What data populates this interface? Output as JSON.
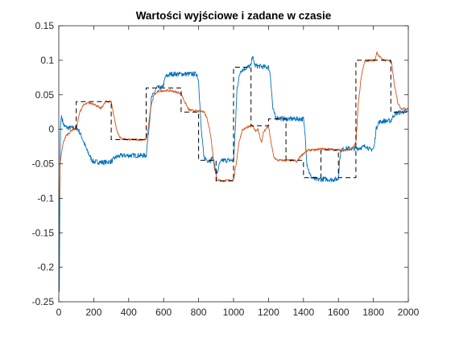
{
  "chart_data": {
    "type": "line",
    "title": "Wartości wyjściowe i zadane w czasie",
    "xlabel": "",
    "ylabel": "",
    "xlim": [
      0,
      2000
    ],
    "ylim": [
      -0.25,
      0.15
    ],
    "xticks": [
      0,
      200,
      400,
      600,
      800,
      1000,
      1200,
      1400,
      1600,
      1800,
      2000
    ],
    "yticks": [
      -0.25,
      -0.2,
      -0.15,
      -0.1,
      -0.05,
      0,
      0.05,
      0.1,
      0.15
    ],
    "xtick_labels": [
      "0",
      "200",
      "400",
      "600",
      "800",
      "1000",
      "1200",
      "1400",
      "1600",
      "1800",
      "2000"
    ],
    "ytick_labels": [
      "-0.25",
      "-0.2",
      "-0.15",
      "-0.1",
      "-0.05",
      "0",
      "0.05",
      "0.1",
      "0.15"
    ],
    "grid": false,
    "legend": "none",
    "series": [
      {
        "color": "#0072BD",
        "points": [
          [
            0,
            0
          ],
          [
            3,
            -0.235
          ],
          [
            6,
            -0.09
          ],
          [
            10,
            0.005
          ],
          [
            15,
            0.02
          ],
          [
            22,
            0.012
          ],
          [
            30,
            0.005
          ],
          [
            50,
            0.002
          ],
          [
            80,
            0.002
          ],
          [
            100,
            0.002
          ],
          [
            110,
            0.0
          ],
          [
            130,
            -0.01
          ],
          [
            160,
            -0.03
          ],
          [
            190,
            -0.045
          ],
          [
            200,
            -0.047
          ],
          [
            260,
            -0.048
          ],
          [
            290,
            -0.047
          ],
          [
            300,
            -0.047
          ],
          [
            310,
            -0.044
          ],
          [
            330,
            -0.04
          ],
          [
            360,
            -0.038
          ],
          [
            400,
            -0.038
          ],
          [
            470,
            -0.038
          ],
          [
            500,
            -0.038
          ],
          [
            515,
            0.0
          ],
          [
            530,
            0.045
          ],
          [
            560,
            0.06
          ],
          [
            590,
            0.06
          ],
          [
            600,
            0.065
          ],
          [
            610,
            0.076
          ],
          [
            640,
            0.08
          ],
          [
            700,
            0.08
          ],
          [
            790,
            0.08
          ],
          [
            800,
            0.07
          ],
          [
            815,
            0.0
          ],
          [
            830,
            -0.04
          ],
          [
            850,
            -0.045
          ],
          [
            870,
            -0.045
          ],
          [
            880,
            -0.04
          ],
          [
            895,
            -0.055
          ],
          [
            905,
            -0.065
          ],
          [
            910,
            -0.06
          ],
          [
            920,
            -0.05
          ],
          [
            935,
            -0.045
          ],
          [
            960,
            -0.045
          ],
          [
            1000,
            -0.045
          ],
          [
            1010,
            0.0
          ],
          [
            1020,
            0.06
          ],
          [
            1040,
            0.085
          ],
          [
            1080,
            0.09
          ],
          [
            1100,
            0.092
          ],
          [
            1108,
            0.108
          ],
          [
            1115,
            0.098
          ],
          [
            1125,
            0.092
          ],
          [
            1190,
            0.09
          ],
          [
            1200,
            0.09
          ],
          [
            1210,
            0.08
          ],
          [
            1225,
            0.03
          ],
          [
            1240,
            0.017
          ],
          [
            1290,
            0.015
          ],
          [
            1330,
            0.015
          ],
          [
            1400,
            0.015
          ],
          [
            1410,
            -0.01
          ],
          [
            1420,
            -0.05
          ],
          [
            1440,
            -0.068
          ],
          [
            1460,
            -0.072
          ],
          [
            1480,
            -0.073
          ],
          [
            1520,
            -0.072
          ],
          [
            1560,
            -0.073
          ],
          [
            1600,
            -0.072
          ],
          [
            1605,
            -0.05
          ],
          [
            1615,
            -0.03
          ],
          [
            1640,
            -0.028
          ],
          [
            1700,
            -0.028
          ],
          [
            1740,
            -0.026
          ],
          [
            1760,
            -0.024
          ],
          [
            1780,
            -0.03
          ],
          [
            1800,
            -0.028
          ],
          [
            1805,
            -0.025
          ],
          [
            1815,
            0.0
          ],
          [
            1830,
            0.01
          ],
          [
            1860,
            0.012
          ],
          [
            1900,
            0.012
          ],
          [
            1905,
            0.015
          ],
          [
            1915,
            0.02
          ],
          [
            1930,
            0.023
          ],
          [
            1960,
            0.025
          ],
          [
            2000,
            0.025
          ]
        ]
      },
      {
        "color": "#D95319",
        "points": [
          [
            0,
            -0.08
          ],
          [
            4,
            -0.1
          ],
          [
            8,
            -0.05
          ],
          [
            15,
            -0.035
          ],
          [
            25,
            -0.02
          ],
          [
            40,
            -0.01
          ],
          [
            60,
            -0.005
          ],
          [
            80,
            0.0
          ],
          [
            100,
            0.0
          ],
          [
            108,
            0.01
          ],
          [
            120,
            0.025
          ],
          [
            140,
            0.035
          ],
          [
            170,
            0.038
          ],
          [
            200,
            0.037
          ],
          [
            240,
            0.03
          ],
          [
            270,
            0.04
          ],
          [
            300,
            0.04
          ],
          [
            315,
            0.02
          ],
          [
            330,
            0.0
          ],
          [
            345,
            -0.01
          ],
          [
            360,
            -0.014
          ],
          [
            400,
            -0.015
          ],
          [
            450,
            -0.015
          ],
          [
            500,
            -0.015
          ],
          [
            510,
            0.0
          ],
          [
            525,
            0.03
          ],
          [
            545,
            0.05
          ],
          [
            570,
            0.055
          ],
          [
            600,
            0.056
          ],
          [
            640,
            0.056
          ],
          [
            700,
            0.052
          ],
          [
            720,
            0.04
          ],
          [
            745,
            0.028
          ],
          [
            770,
            0.027
          ],
          [
            800,
            0.026
          ],
          [
            830,
            0.026
          ],
          [
            850,
            0.015
          ],
          [
            870,
            -0.01
          ],
          [
            890,
            -0.055
          ],
          [
            905,
            -0.073
          ],
          [
            940,
            -0.075
          ],
          [
            1000,
            -0.073
          ],
          [
            1015,
            -0.05
          ],
          [
            1030,
            -0.02
          ],
          [
            1050,
            -0.001
          ],
          [
            1080,
            0.003
          ],
          [
            1110,
            0.005
          ],
          [
            1125,
            -0.002
          ],
          [
            1140,
            0.0
          ],
          [
            1160,
            -0.02
          ],
          [
            1170,
            -0.005
          ],
          [
            1200,
            0.005
          ],
          [
            1215,
            -0.02
          ],
          [
            1230,
            -0.04
          ],
          [
            1250,
            -0.045
          ],
          [
            1300,
            -0.045
          ],
          [
            1330,
            -0.045
          ],
          [
            1350,
            -0.045
          ],
          [
            1360,
            -0.048
          ],
          [
            1380,
            -0.04
          ],
          [
            1400,
            -0.035
          ],
          [
            1430,
            -0.03
          ],
          [
            1470,
            -0.03
          ],
          [
            1500,
            -0.028
          ],
          [
            1600,
            -0.03
          ],
          [
            1620,
            -0.03
          ],
          [
            1650,
            -0.03
          ],
          [
            1680,
            -0.028
          ],
          [
            1700,
            -0.02
          ],
          [
            1715,
            0.04
          ],
          [
            1730,
            0.075
          ],
          [
            1750,
            0.098
          ],
          [
            1780,
            0.1
          ],
          [
            1810,
            0.1
          ],
          [
            1820,
            0.112
          ],
          [
            1835,
            0.105
          ],
          [
            1860,
            0.1
          ],
          [
            1890,
            0.1
          ],
          [
            1905,
            0.095
          ],
          [
            1920,
            0.065
          ],
          [
            1940,
            0.038
          ],
          [
            1960,
            0.03
          ],
          [
            2000,
            0.03
          ]
        ]
      },
      {
        "color": "#000000",
        "dashed": true,
        "points": [
          [
            100,
            0.0
          ],
          [
            100,
            0.04
          ],
          [
            300,
            0.04
          ],
          [
            300,
            -0.015
          ],
          [
            500,
            -0.015
          ],
          [
            500,
            0.06
          ],
          [
            700,
            0.06
          ],
          [
            700,
            0.025
          ],
          [
            800,
            0.025
          ],
          [
            800,
            -0.045
          ],
          [
            900,
            -0.045
          ],
          [
            900,
            -0.075
          ],
          [
            1000,
            -0.075
          ],
          [
            1000,
            0.09
          ],
          [
            1100,
            0.09
          ],
          [
            1100,
            0.005
          ],
          [
            1200,
            0.005
          ],
          [
            1200,
            0.015
          ],
          [
            1300,
            0.015
          ],
          [
            1300,
            -0.045
          ],
          [
            1400,
            -0.045
          ],
          [
            1400,
            -0.07
          ],
          [
            1500,
            -0.07
          ],
          [
            1500,
            -0.03
          ],
          [
            1600,
            -0.03
          ],
          [
            1600,
            -0.07
          ],
          [
            1700,
            -0.07
          ],
          [
            1700,
            0.1
          ],
          [
            1800,
            0.1
          ],
          [
            1800,
            0.1
          ],
          [
            1900,
            0.1
          ],
          [
            1900,
            0.025
          ],
          [
            2000,
            0.025
          ]
        ]
      }
    ]
  }
}
